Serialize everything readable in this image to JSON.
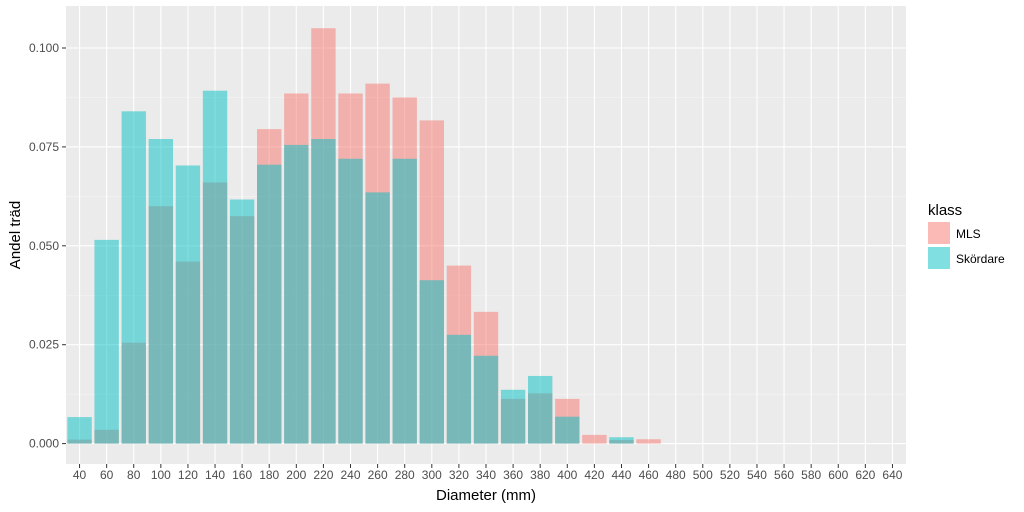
{
  "chart_data": {
    "type": "bar",
    "title": "",
    "xlabel": "Diameter (mm)",
    "ylabel": "Andel träd",
    "ylim": [
      0,
      0.11
    ],
    "yticks": [
      "0.000",
      "0.025",
      "0.050",
      "0.075",
      "0.100"
    ],
    "ytick_values": [
      0,
      0.025,
      0.05,
      0.075,
      0.1
    ],
    "categories": [
      "40",
      "60",
      "80",
      "100",
      "120",
      "140",
      "160",
      "180",
      "200",
      "220",
      "240",
      "260",
      "280",
      "300",
      "320",
      "340",
      "360",
      "380",
      "400",
      "420",
      "440",
      "460",
      "480",
      "500",
      "520",
      "540",
      "560",
      "580",
      "600",
      "620",
      "640"
    ],
    "xtick_labels": [
      "40",
      "60",
      "80",
      "100",
      "120",
      "140",
      "160",
      "180",
      "200",
      "220",
      "240",
      "260",
      "280",
      "300",
      "320",
      "340",
      "360",
      "380",
      "400",
      "420",
      "440",
      "460",
      "480",
      "500",
      "520",
      "540",
      "560",
      "580",
      "600",
      "620",
      "640"
    ],
    "legend": {
      "title": "klass",
      "position": "right"
    },
    "series": [
      {
        "name": "MLS",
        "color": "#F8766D",
        "values": [
          0.001,
          0.0035,
          0.0255,
          0.06,
          0.046,
          0.066,
          0.0575,
          0.0795,
          0.0885,
          0.105,
          0.0885,
          0.091,
          0.0875,
          0.0817,
          0.045,
          0.0333,
          0.0113,
          0.0127,
          0.0113,
          0.0022,
          0.0009,
          0.0011,
          0,
          0,
          0,
          0,
          0,
          0,
          0,
          0,
          0
        ]
      },
      {
        "name": "Skördare",
        "color": "#00BFC4",
        "values": [
          0.0067,
          0.0515,
          0.084,
          0.077,
          0.0703,
          0.0892,
          0.0617,
          0.0705,
          0.0755,
          0.077,
          0.072,
          0.0635,
          0.072,
          0.0413,
          0.0275,
          0.0222,
          0.0136,
          0.0171,
          0.0068,
          0,
          0.0016,
          0,
          0,
          0,
          0,
          0,
          0,
          0,
          0,
          0,
          0
        ]
      }
    ]
  }
}
